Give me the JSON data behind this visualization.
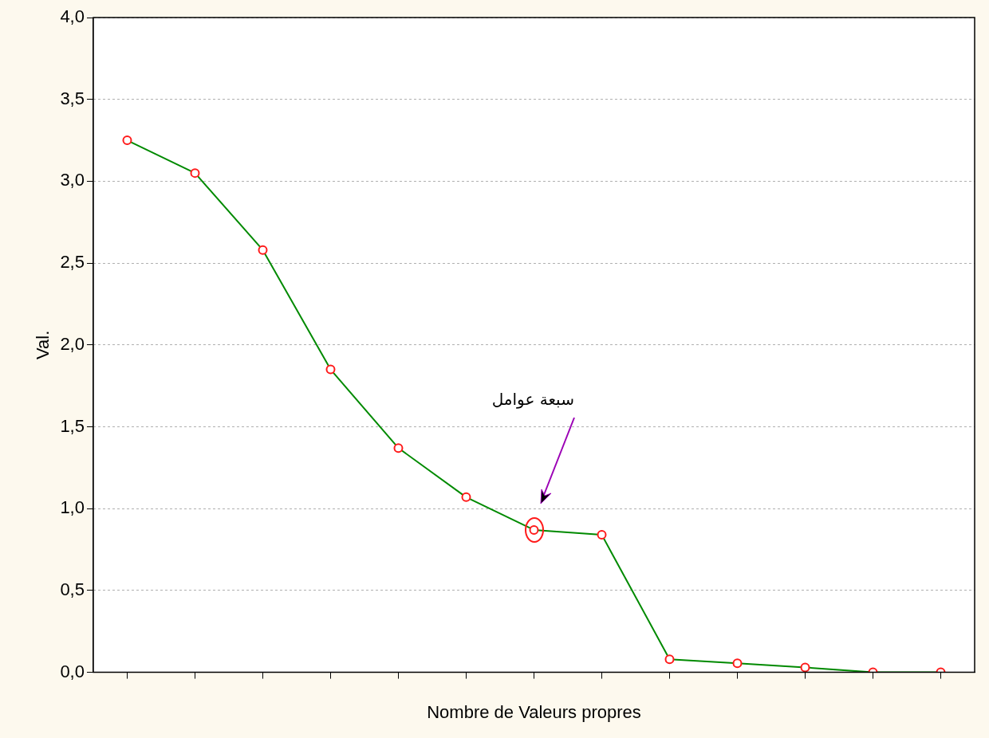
{
  "chart_data": {
    "type": "line",
    "xlabel": "Nombre de Valeurs propres",
    "ylabel": "Val.",
    "categories": [
      null,
      null,
      null,
      null,
      null,
      null,
      null,
      null,
      null,
      null,
      null,
      null,
      null
    ],
    "series": [
      {
        "color": "#008a00",
        "values": [
          3.25,
          3.05,
          2.58,
          1.85,
          1.37,
          1.07,
          0.87,
          0.84,
          0.08,
          0.055,
          0.03,
          0,
          0
        ]
      }
    ],
    "ylim": [
      0,
      4
    ],
    "yticks": [
      {
        "value": 0,
        "label": "0,0"
      },
      {
        "value": 0.5,
        "label": "0,5"
      },
      {
        "value": 1,
        "label": "1,0"
      },
      {
        "value": 1.5,
        "label": "1,5"
      },
      {
        "value": 2,
        "label": "2,0"
      },
      {
        "value": 2.5,
        "label": "2,5"
      },
      {
        "value": 3,
        "label": "3,0"
      },
      {
        "value": 3.5,
        "label": "3,5"
      },
      {
        "value": 4,
        "label": "4,0"
      }
    ],
    "grid": "y",
    "legend": false,
    "marker": "circle",
    "line_style": "solid",
    "annotations": [
      "سبعة عوامل"
    ]
  }
}
